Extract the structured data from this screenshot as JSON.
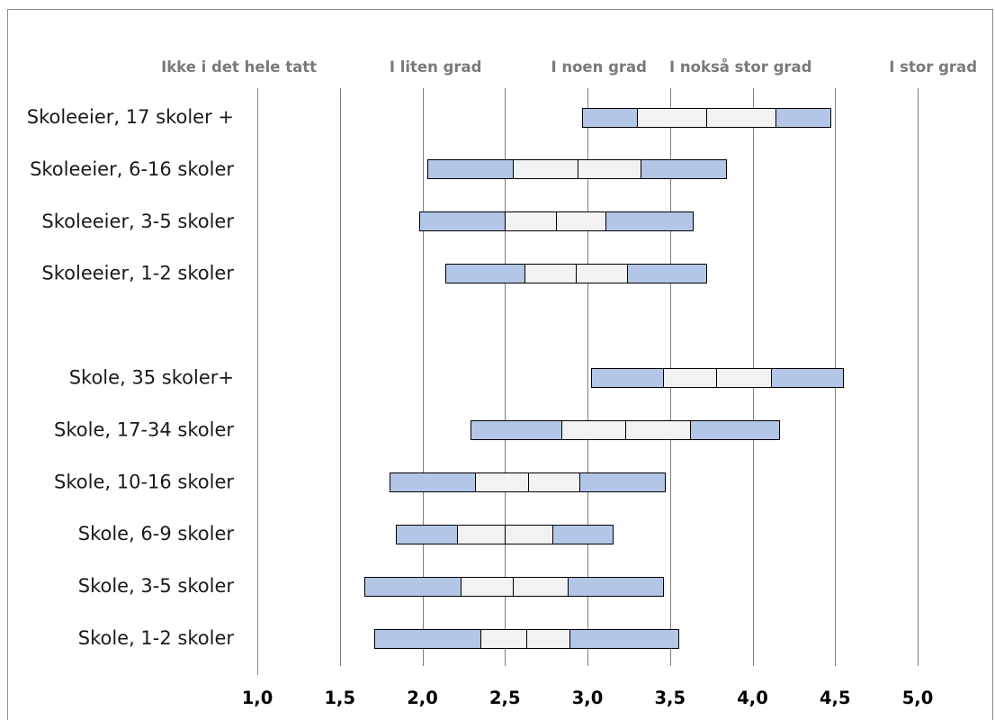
{
  "chart_data": {
    "type": "bar",
    "subtype": "horizontal-range-box",
    "title": "",
    "xlabel": "",
    "ylabel": "",
    "xlim": [
      1.0,
      5.0
    ],
    "x_ticks": [
      "1,0",
      "1,5",
      "2,0",
      "2,5",
      "3,0",
      "3,5",
      "4,0",
      "4,5",
      "5,0"
    ],
    "x_tick_values": [
      1.0,
      1.5,
      2.0,
      2.5,
      3.0,
      3.5,
      4.0,
      4.5,
      5.0
    ],
    "scale_labels": [
      {
        "text": "Ikke i det hele tatt",
        "value": 1.0
      },
      {
        "text": "I liten grad",
        "value": 2.0
      },
      {
        "text": "I noen grad",
        "value": 3.0
      },
      {
        "text": "I nokså stor grad",
        "value": 4.0
      },
      {
        "text": "I stor grad",
        "value": 5.0
      }
    ],
    "grid": true,
    "segment_order": [
      "min",
      "q1",
      "median",
      "q3",
      "max"
    ],
    "colors": {
      "outer": "#b4c6e7",
      "inner": "#f2f2f2",
      "border": "#000000",
      "grid": "#7f7f7f"
    },
    "categories": [
      {
        "label": "Skoleeier, 17 skoler +",
        "values": [
          2.97,
          3.3,
          3.72,
          4.14,
          4.47
        ]
      },
      {
        "label": "Skoleeier, 6-16 skoler",
        "values": [
          2.03,
          2.55,
          2.94,
          3.32,
          3.84
        ]
      },
      {
        "label": "Skoleeier, 3-5 skoler",
        "values": [
          1.98,
          2.5,
          2.81,
          3.11,
          3.64
        ]
      },
      {
        "label": "Skoleeier, 1-2 skoler",
        "values": [
          2.14,
          2.62,
          2.93,
          3.24,
          3.72
        ]
      },
      {
        "label": "",
        "values": null
      },
      {
        "label": "Skole, 35 skoler+",
        "values": [
          3.02,
          3.46,
          3.78,
          4.11,
          4.55
        ]
      },
      {
        "label": "Skole, 17-34 skoler",
        "values": [
          2.29,
          2.84,
          3.23,
          3.62,
          4.16
        ]
      },
      {
        "label": "Skole, 10-16 skoler",
        "values": [
          1.8,
          2.32,
          2.64,
          2.95,
          3.47
        ]
      },
      {
        "label": "Skole, 6-9 skoler",
        "values": [
          1.84,
          2.21,
          2.5,
          2.79,
          3.15
        ]
      },
      {
        "label": "Skole, 3-5 skoler",
        "values": [
          1.65,
          2.23,
          2.55,
          2.88,
          3.46
        ]
      },
      {
        "label": "Skole, 1-2 skoler",
        "values": [
          1.71,
          2.35,
          2.63,
          2.89,
          3.55
        ]
      }
    ]
  }
}
